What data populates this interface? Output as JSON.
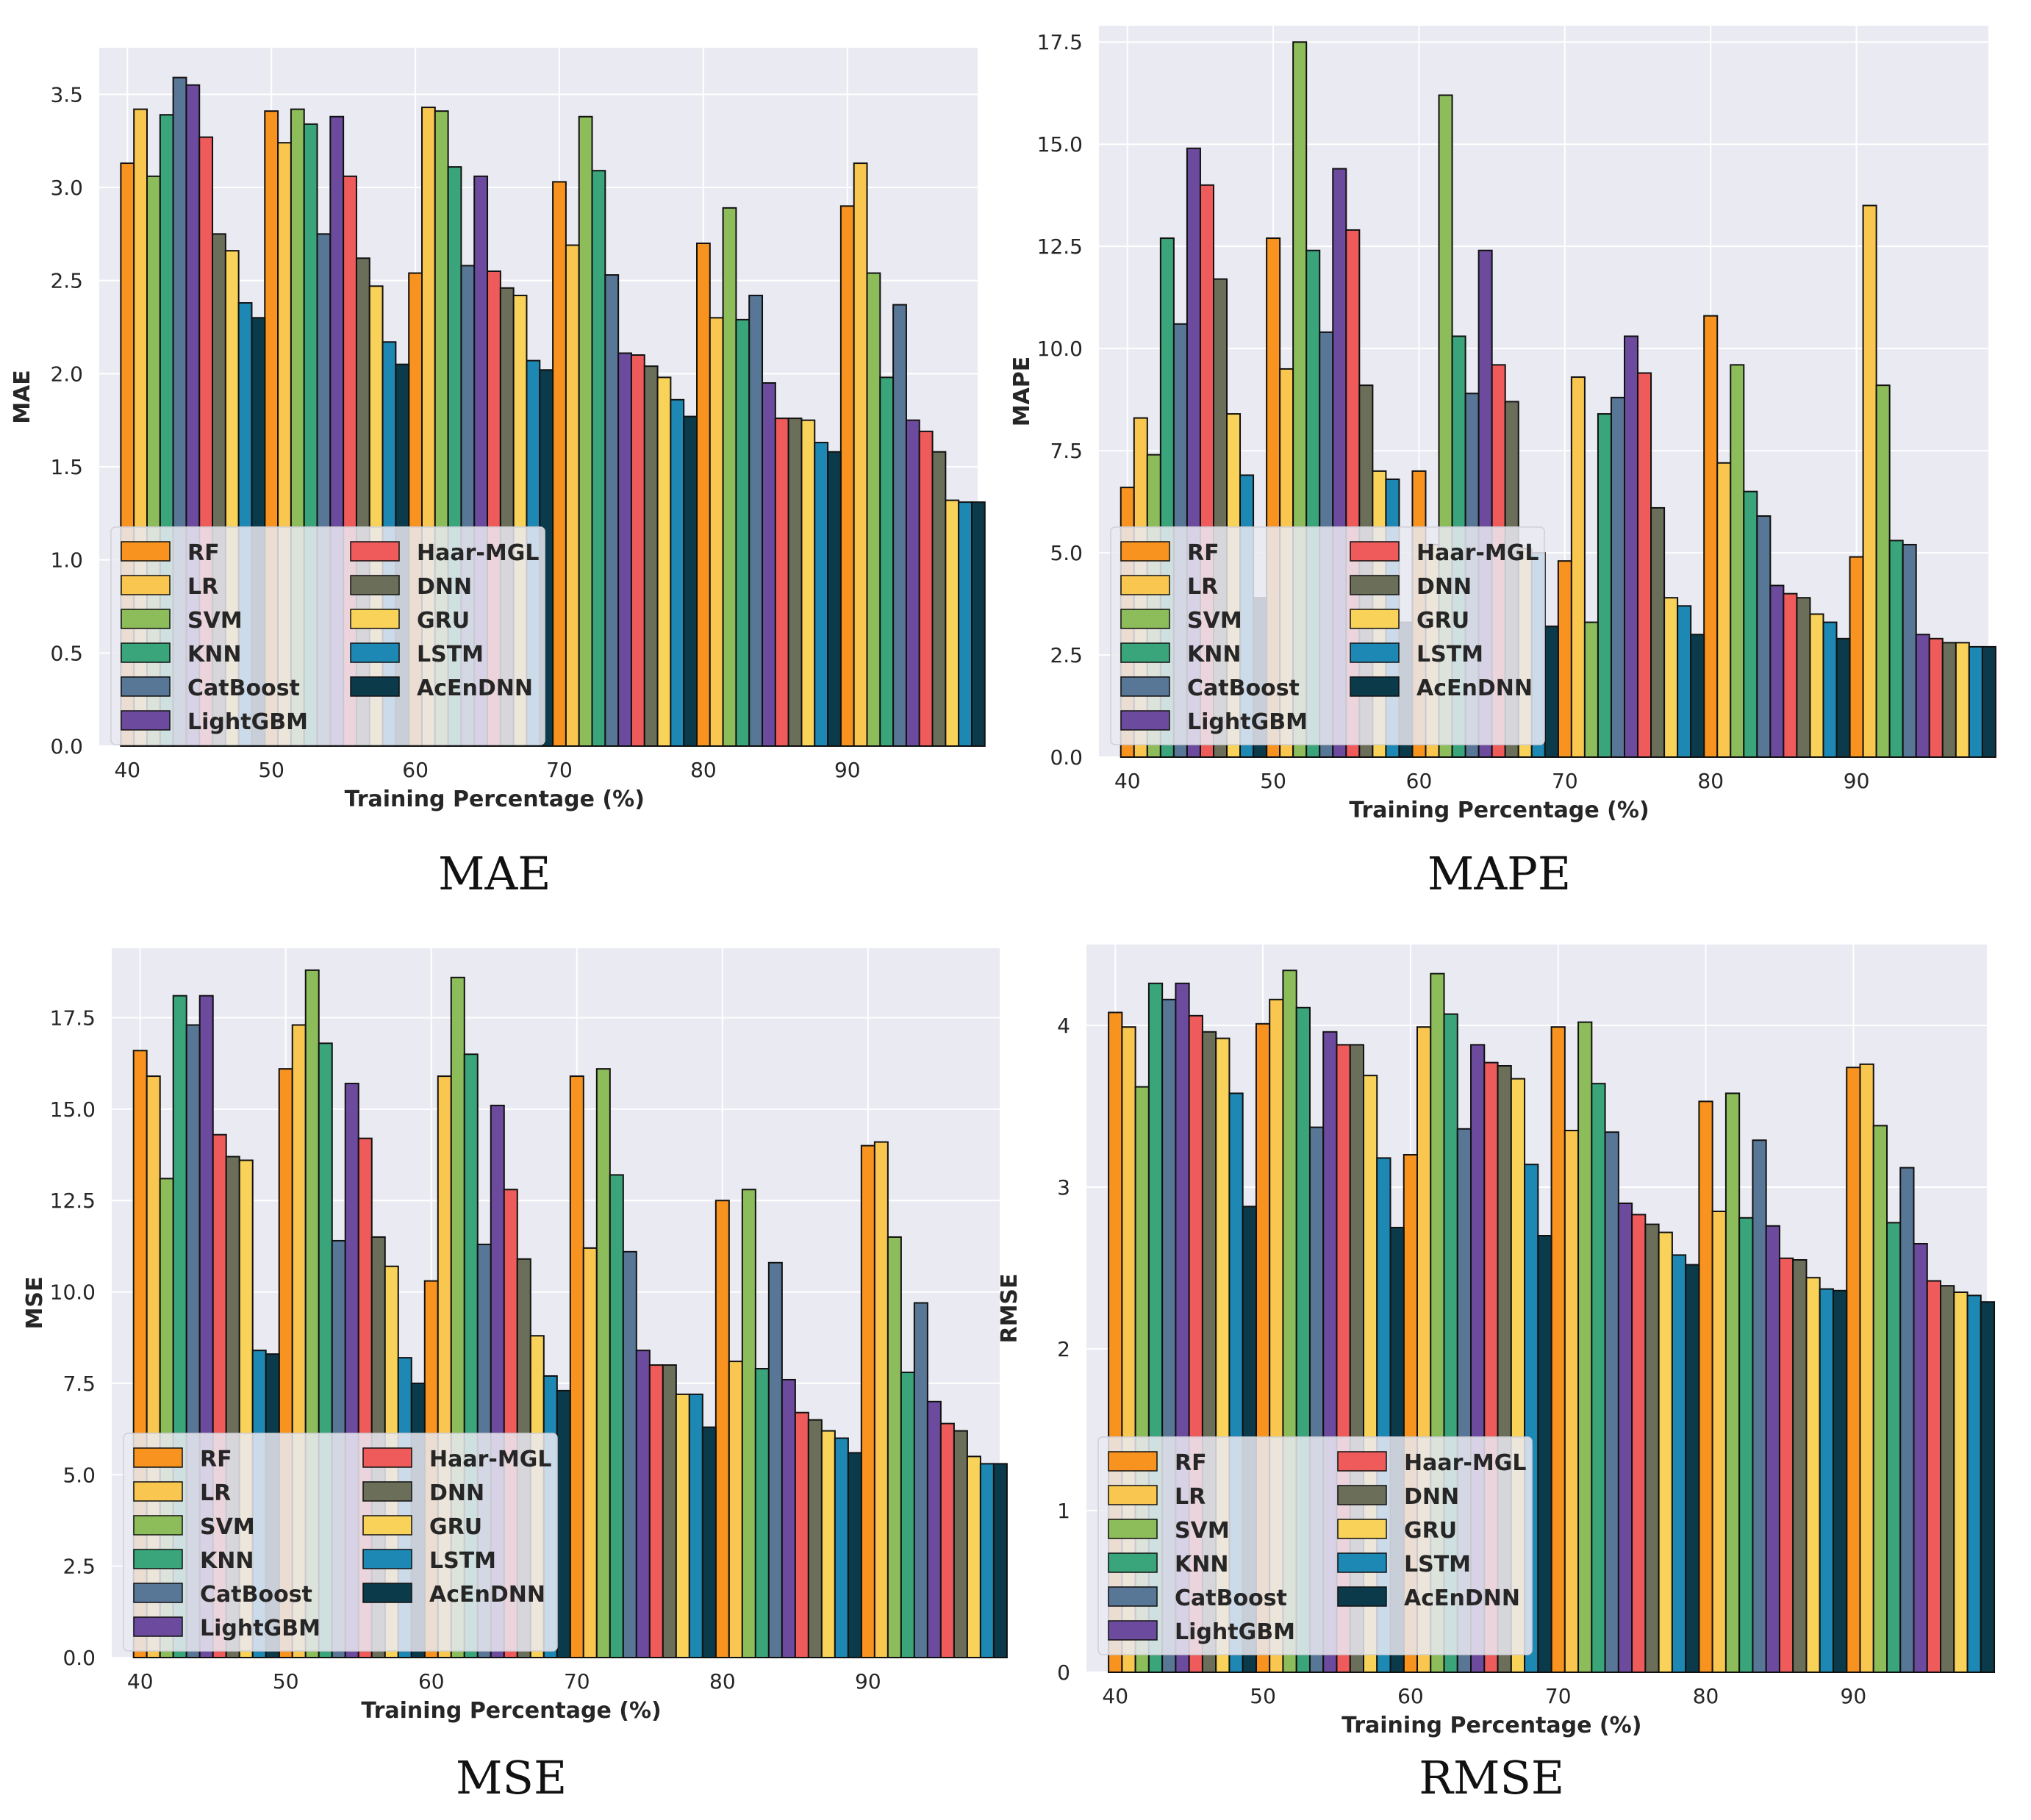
{
  "palette": {
    "RF": "#f7931e",
    "LR": "#f9c74f",
    "SVM": "#8dbd5b",
    "KNN": "#3aa57a",
    "CatBoost": "#587696",
    "LightGBM": "#6c4b9e",
    "Haar-MGL": "#ef5b5b",
    "DNN": "#6b6f5a",
    "GRU": "#f9d25a",
    "LSTM": "#1e88b4",
    "AcEnDNN": "#0b3a4a"
  },
  "chart_data": [
    {
      "type": "bar",
      "caption": "MAE",
      "xlabel": "Training Percentage (%)",
      "ylabel": "MAE",
      "ylim": [
        0,
        3.75
      ],
      "yticks": [
        0.0,
        0.5,
        1.0,
        1.5,
        2.0,
        2.5,
        3.0,
        3.5
      ],
      "ytick_labels": [
        "0.0",
        "0.5",
        "1.0",
        "1.5",
        "2.0",
        "2.5",
        "3.0",
        "3.5"
      ],
      "categories": [
        "40",
        "50",
        "60",
        "70",
        "80",
        "90"
      ],
      "series": [
        {
          "name": "RF",
          "values": [
            3.13,
            3.41,
            2.54,
            3.03,
            2.7,
            2.9
          ]
        },
        {
          "name": "LR",
          "values": [
            3.42,
            3.24,
            3.43,
            2.69,
            2.3,
            3.13
          ]
        },
        {
          "name": "SVM",
          "values": [
            3.06,
            3.42,
            3.41,
            3.38,
            2.89,
            2.54
          ]
        },
        {
          "name": "KNN",
          "values": [
            3.39,
            3.34,
            3.11,
            3.09,
            2.29,
            1.98
          ]
        },
        {
          "name": "CatBoost",
          "values": [
            3.59,
            2.75,
            2.58,
            2.53,
            2.42,
            2.37
          ]
        },
        {
          "name": "LightGBM",
          "values": [
            3.55,
            3.38,
            3.06,
            2.11,
            1.95,
            1.75
          ]
        },
        {
          "name": "Haar-MGL",
          "values": [
            3.27,
            3.06,
            2.55,
            2.1,
            1.76,
            1.69
          ]
        },
        {
          "name": "DNN",
          "values": [
            2.75,
            2.62,
            2.46,
            2.04,
            1.76,
            1.58
          ]
        },
        {
          "name": "GRU",
          "values": [
            2.66,
            2.47,
            2.42,
            1.98,
            1.75,
            1.32
          ]
        },
        {
          "name": "LSTM",
          "values": [
            2.38,
            2.17,
            2.07,
            1.86,
            1.63,
            1.31
          ]
        },
        {
          "name": "AcEnDNN",
          "values": [
            2.3,
            2.05,
            2.02,
            1.77,
            1.58,
            1.31
          ]
        }
      ]
    },
    {
      "type": "bar",
      "caption": "MAPE",
      "xlabel": "Training Percentage (%)",
      "ylabel": "MAPE",
      "ylim": [
        0,
        17.9
      ],
      "yticks": [
        0.0,
        2.5,
        5.0,
        7.5,
        10.0,
        12.5,
        15.0,
        17.5
      ],
      "ytick_labels": [
        "0.0",
        "2.5",
        "5.0",
        "7.5",
        "10.0",
        "12.5",
        "15.0",
        "17.5"
      ],
      "categories": [
        "40",
        "50",
        "60",
        "70",
        "80",
        "90"
      ],
      "series": [
        {
          "name": "RF",
          "values": [
            6.6,
            12.7,
            7.0,
            4.8,
            10.8,
            4.9
          ]
        },
        {
          "name": "LR",
          "values": [
            8.3,
            9.5,
            5.2,
            9.3,
            7.2,
            13.5
          ]
        },
        {
          "name": "SVM",
          "values": [
            7.4,
            17.5,
            16.2,
            3.3,
            9.6,
            9.1
          ]
        },
        {
          "name": "KNN",
          "values": [
            12.7,
            12.4,
            10.3,
            8.4,
            6.5,
            5.3
          ]
        },
        {
          "name": "CatBoost",
          "values": [
            10.6,
            10.4,
            8.9,
            8.8,
            5.9,
            5.2
          ]
        },
        {
          "name": "LightGBM",
          "values": [
            14.9,
            14.4,
            12.4,
            10.3,
            4.2,
            3.0
          ]
        },
        {
          "name": "Haar-MGL",
          "values": [
            14.0,
            12.9,
            9.6,
            9.4,
            4.0,
            2.9
          ]
        },
        {
          "name": "DNN",
          "values": [
            11.7,
            9.1,
            8.7,
            6.1,
            3.9,
            2.8
          ]
        },
        {
          "name": "GRU",
          "values": [
            8.4,
            7.0,
            5.1,
            3.9,
            3.5,
            2.8
          ]
        },
        {
          "name": "LSTM",
          "values": [
            6.9,
            6.8,
            5.0,
            3.7,
            3.3,
            2.7
          ]
        },
        {
          "name": "AcEnDNN",
          "values": [
            3.9,
            3.3,
            3.2,
            3.0,
            2.9,
            2.7
          ]
        }
      ]
    },
    {
      "type": "bar",
      "caption": "MSE",
      "xlabel": "Training Percentage (%)",
      "ylabel": "MSE",
      "ylim": [
        0,
        19.4
      ],
      "yticks": [
        0.0,
        2.5,
        5.0,
        7.5,
        10.0,
        12.5,
        15.0,
        17.5
      ],
      "ytick_labels": [
        "0.0",
        "2.5",
        "5.0",
        "7.5",
        "10.0",
        "12.5",
        "15.0",
        "17.5"
      ],
      "categories": [
        "40",
        "50",
        "60",
        "70",
        "80",
        "90"
      ],
      "series": [
        {
          "name": "RF",
          "values": [
            16.6,
            16.1,
            10.3,
            15.9,
            12.5,
            14.0
          ]
        },
        {
          "name": "LR",
          "values": [
            15.9,
            17.3,
            15.9,
            11.2,
            8.1,
            14.1
          ]
        },
        {
          "name": "SVM",
          "values": [
            13.1,
            18.8,
            18.6,
            16.1,
            12.8,
            11.5
          ]
        },
        {
          "name": "KNN",
          "values": [
            18.1,
            16.8,
            16.5,
            13.2,
            7.9,
            7.8
          ]
        },
        {
          "name": "CatBoost",
          "values": [
            17.3,
            11.4,
            11.3,
            11.1,
            10.8,
            9.7
          ]
        },
        {
          "name": "LightGBM",
          "values": [
            18.1,
            15.7,
            15.1,
            8.4,
            7.6,
            7.0
          ]
        },
        {
          "name": "Haar-MGL",
          "values": [
            14.3,
            14.2,
            12.8,
            8.0,
            6.7,
            6.4
          ]
        },
        {
          "name": "DNN",
          "values": [
            13.7,
            11.5,
            10.9,
            8.0,
            6.5,
            6.2
          ]
        },
        {
          "name": "GRU",
          "values": [
            13.6,
            10.7,
            8.8,
            7.2,
            6.2,
            5.5
          ]
        },
        {
          "name": "LSTM",
          "values": [
            8.4,
            8.2,
            7.7,
            7.2,
            6.0,
            5.3
          ]
        },
        {
          "name": "AcEnDNN",
          "values": [
            8.3,
            7.5,
            7.3,
            6.3,
            5.6,
            5.3
          ]
        }
      ]
    },
    {
      "type": "bar",
      "caption": "RMSE",
      "xlabel": "Training Percentage (%)",
      "ylabel": "RMSE",
      "ylim": [
        0,
        4.5
      ],
      "yticks": [
        0,
        1,
        2,
        3,
        4
      ],
      "ytick_labels": [
        "0",
        "1",
        "2",
        "3",
        "4"
      ],
      "categories": [
        "40",
        "50",
        "60",
        "70",
        "80",
        "90"
      ],
      "series": [
        {
          "name": "RF",
          "values": [
            4.08,
            4.01,
            3.2,
            3.99,
            3.53,
            3.74
          ]
        },
        {
          "name": "LR",
          "values": [
            3.99,
            4.16,
            3.99,
            3.35,
            2.85,
            3.76
          ]
        },
        {
          "name": "SVM",
          "values": [
            3.62,
            4.34,
            4.32,
            4.02,
            3.58,
            3.38
          ]
        },
        {
          "name": "KNN",
          "values": [
            4.26,
            4.11,
            4.07,
            3.64,
            2.81,
            2.78
          ]
        },
        {
          "name": "CatBoost",
          "values": [
            4.16,
            3.37,
            3.36,
            3.34,
            3.29,
            3.12
          ]
        },
        {
          "name": "LightGBM",
          "values": [
            4.26,
            3.96,
            3.88,
            2.9,
            2.76,
            2.65
          ]
        },
        {
          "name": "Haar-MGL",
          "values": [
            4.06,
            3.88,
            3.77,
            2.83,
            2.56,
            2.42
          ]
        },
        {
          "name": "DNN",
          "values": [
            3.96,
            3.88,
            3.75,
            2.77,
            2.55,
            2.39
          ]
        },
        {
          "name": "GRU",
          "values": [
            3.92,
            3.69,
            3.67,
            2.72,
            2.44,
            2.35
          ]
        },
        {
          "name": "LSTM",
          "values": [
            3.58,
            3.18,
            3.14,
            2.58,
            2.37,
            2.33
          ]
        },
        {
          "name": "AcEnDNN",
          "values": [
            2.88,
            2.75,
            2.7,
            2.52,
            2.36,
            2.29
          ]
        }
      ]
    }
  ]
}
